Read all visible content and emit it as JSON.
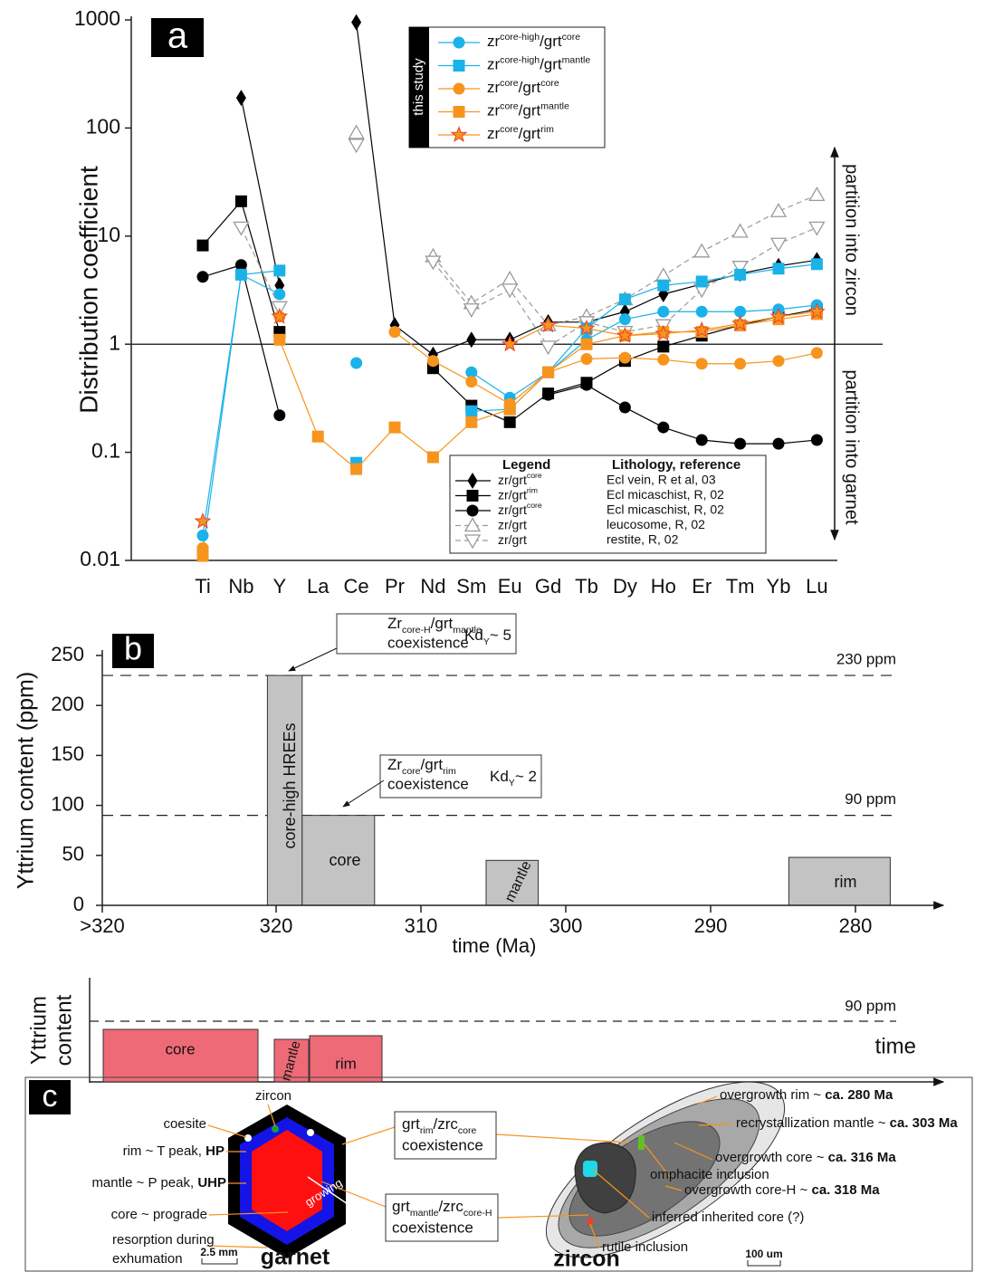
{
  "chart_data": [
    {
      "type": "line",
      "panel_label": "a",
      "y_label": "Distribution coefficient",
      "y_scale": "log",
      "ylim": [
        0.01,
        1000
      ],
      "yticks": [
        0.01,
        0.1,
        1,
        10,
        100,
        1000
      ],
      "categories": [
        "Ti",
        "Nb",
        "Y",
        "La",
        "Ce",
        "Pr",
        "Nd",
        "Sm",
        "Eu",
        "Gd",
        "Tb",
        "Dy",
        "Ho",
        "Er",
        "Tm",
        "Yb",
        "Lu"
      ],
      "reference_line": 1,
      "annotations": {
        "upper": "partition into zircon",
        "lower": "partition into garnet"
      },
      "study_legend_label": "this study",
      "literature_legend_headers": [
        "Legend",
        "Lithology, reference"
      ],
      "series": [
        {
          "name": [
            "zr",
            "core-high",
            "/grt",
            "core"
          ],
          "group": "study",
          "color": "#1ab2e8",
          "marker": "circle",
          "line_style": "solid",
          "values": [
            0.017,
            4.4,
            2.9,
            null,
            0.67,
            null,
            null,
            0.55,
            0.32,
            0.55,
            1.1,
            1.7,
            2.0,
            2.0,
            2.0,
            2.1,
            2.3
          ]
        },
        {
          "name": [
            "zr",
            "core-high",
            "/grt",
            "mantle"
          ],
          "group": "study",
          "color": "#1ab2e8",
          "marker": "square",
          "line_style": "solid",
          "values": [
            0.012,
            4.4,
            4.8,
            null,
            0.08,
            null,
            null,
            0.24,
            0.25,
            0.55,
            1.4,
            2.6,
            3.5,
            3.8,
            4.4,
            5.0,
            5.5
          ]
        },
        {
          "name": [
            "zr",
            "core",
            "/grt",
            "core"
          ],
          "group": "study",
          "color": "#f7941d",
          "marker": "circle",
          "line_style": "solid",
          "values": [
            0.013,
            null,
            1.8,
            null,
            null,
            1.3,
            0.7,
            0.45,
            0.28,
            0.55,
            0.73,
            0.75,
            0.72,
            0.66,
            0.66,
            0.7,
            0.83
          ]
        },
        {
          "name": [
            "zr",
            "core",
            "/grt",
            "mantle"
          ],
          "group": "study",
          "color": "#f7941d",
          "marker": "square",
          "line_style": "solid",
          "values": [
            0.011,
            null,
            1.1,
            0.14,
            0.07,
            0.17,
            0.09,
            0.19,
            0.25,
            0.55,
            1.0,
            1.2,
            1.3,
            1.3,
            1.5,
            1.7,
            1.9
          ]
        },
        {
          "name": [
            "zr",
            "core",
            "/grt",
            "rim"
          ],
          "group": "study",
          "color": "#f7941d",
          "edge_color": "#e8412c",
          "marker": "star",
          "line_style": "solid",
          "values": [
            0.023,
            null,
            1.8,
            null,
            null,
            null,
            null,
            null,
            1.0,
            1.5,
            1.4,
            1.2,
            1.25,
            1.35,
            1.55,
            1.8,
            2.0
          ]
        },
        {
          "name": [
            "zr/grt",
            "core"
          ],
          "reference": "Ecl vein, R et al, 03",
          "group": "literature",
          "color": "#000000",
          "marker": "diamond",
          "line_style": "solid",
          "values": [
            null,
            190,
            3.5,
            null,
            950,
            1.5,
            0.8,
            1.1,
            1.1,
            1.6,
            1.6,
            2.0,
            2.9,
            3.6,
            4.5,
            5.3,
            6.0
          ]
        },
        {
          "name": [
            "zr/grt",
            "rim"
          ],
          "reference": "Ecl micaschist, R, 02",
          "group": "literature",
          "color": "#000000",
          "marker": "square",
          "line_style": "solid",
          "values": [
            8.2,
            21,
            1.3,
            null,
            null,
            null,
            0.6,
            0.27,
            0.19,
            0.35,
            0.44,
            0.7,
            0.95,
            1.2,
            1.5,
            1.8,
            2.1
          ]
        },
        {
          "name": [
            "zr/grt",
            "core"
          ],
          "reference": "Ecl micaschist, R, 02",
          "group": "literature",
          "color": "#000000",
          "marker": "circle",
          "line_style": "solid",
          "values": [
            4.2,
            5.4,
            0.22,
            null,
            null,
            null,
            null,
            null,
            null,
            0.34,
            0.42,
            0.26,
            0.17,
            0.13,
            0.12,
            0.12,
            0.13
          ]
        },
        {
          "name": [
            "zr/grt"
          ],
          "reference": "leucosome, R, 02",
          "group": "literature",
          "color": "#9a9a9a",
          "marker": "triangle-up",
          "line_style": "dashed",
          "values": [
            null,
            null,
            null,
            null,
            90,
            null,
            6.5,
            2.4,
            4.0,
            1.5,
            1.8,
            2.6,
            4.3,
            7.2,
            11,
            17,
            24
          ]
        },
        {
          "name": [
            "zr/grt"
          ],
          "reference": "restite, R, 02",
          "group": "literature",
          "color": "#9a9a9a",
          "marker": "triangle-down",
          "line_style": "dashed",
          "values": [
            null,
            12,
            2.2,
            null,
            70,
            null,
            5.8,
            2.1,
            3.2,
            0.95,
            1.6,
            1.3,
            1.5,
            3.2,
            5.2,
            8.5,
            12
          ]
        }
      ]
    },
    {
      "type": "bar",
      "panel_label": "b",
      "y_label": "Yttrium content (ppm)",
      "x_label": "time (Ma)",
      "xlim": [
        332,
        275
      ],
      "xticks": [
        {
          "value": 332,
          "label": ">320"
        },
        320,
        310,
        300,
        290,
        280
      ],
      "ylim": [
        0,
        250
      ],
      "yticks": [
        0,
        50,
        100,
        150,
        200,
        250
      ],
      "reference_lines": [
        {
          "value": 230,
          "label": "230 ppm"
        },
        {
          "value": 90,
          "label": "90 ppm"
        }
      ],
      "color": "#c3c3c3",
      "bars": [
        {
          "name": "core-high HREEs",
          "start": 320.6,
          "end": 318.2,
          "value": 230
        },
        {
          "name": "core",
          "start": 318.2,
          "end": 313.2,
          "value": 90
        },
        {
          "name": "mantle",
          "start": 305.5,
          "end": 301.9,
          "value": 45
        },
        {
          "name": "rim",
          "start": 284.6,
          "end": 277.6,
          "value": 48
        }
      ],
      "callouts": [
        {
          "ratio": [
            "Zr",
            "core-H",
            "/grt",
            "mantle"
          ],
          "text": "coexistence",
          "kd": [
            "Kd",
            "Y",
            "~ 5"
          ]
        },
        {
          "ratio": [
            "Zr",
            "core",
            "/grt",
            "rim"
          ],
          "text": "coexistence",
          "kd": [
            "Kd",
            "Y",
            "~ 2"
          ]
        }
      ]
    }
  ],
  "schematic": {
    "y_label": [
      "Yttrium",
      "content"
    ],
    "x_label": "time",
    "reference_label": "90 ppm",
    "bars": [
      "core",
      "mantle",
      "rim"
    ]
  },
  "diagram": {
    "panel_label": "c",
    "garnet": {
      "title": "garnet",
      "scale": "2.5 mm",
      "growing": "growing",
      "labels": [
        [
          "coesite"
        ],
        [
          "zircon"
        ],
        [
          "rim ~ T peak, ",
          "HP"
        ],
        [
          "mantle ~ P peak, ",
          "UHP"
        ],
        [
          "core ~ prograde"
        ],
        [
          "resorption during"
        ],
        [
          "exhumation"
        ]
      ]
    },
    "coexistence": [
      {
        "ratio": [
          "grt",
          "rim",
          "/zrc",
          "core"
        ],
        "text": "coexistence"
      },
      {
        "ratio": [
          "grt",
          "mantle",
          "/zrc",
          "core-H"
        ],
        "text": "coexistence"
      }
    ],
    "zircon": {
      "title": "zircon",
      "scale": "100 um",
      "labels": [
        [
          "overgrowth rim ~ ",
          "ca. 280 Ma"
        ],
        [
          "recrystallization mantle ~ ",
          "ca. 303 Ma"
        ],
        [
          "overgrowth core ~ ",
          "ca. 316 Ma"
        ],
        [
          "omphacite inclusion"
        ],
        [
          "overgrowth core-H ~ ",
          "ca. 318 Ma"
        ],
        [
          "inferred inherited core (?)"
        ],
        [
          "rutile inclusion"
        ]
      ]
    }
  }
}
